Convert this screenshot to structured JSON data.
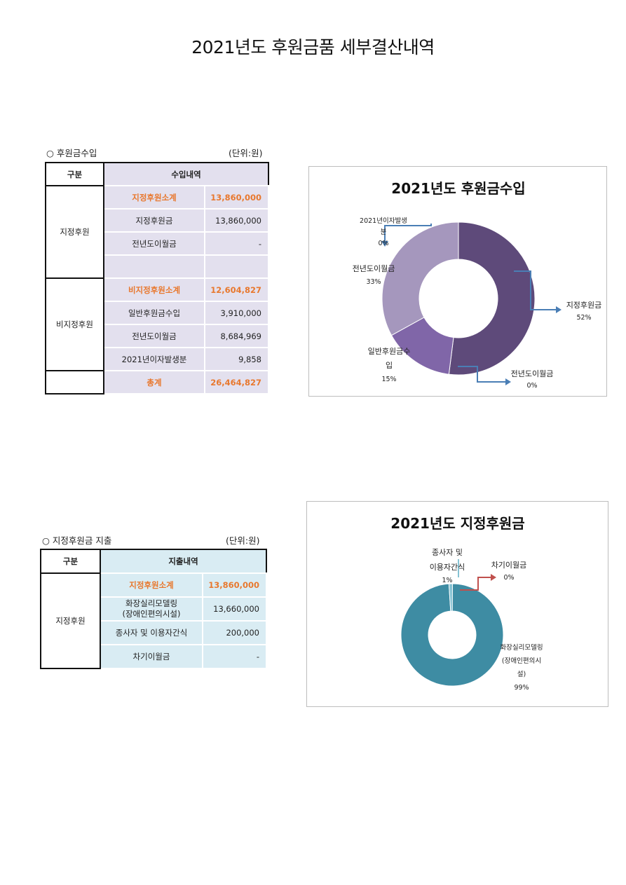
{
  "page_title": "2021년도 후원금품 세부결산내역",
  "income": {
    "section_title": "○ 후원금수입",
    "unit": "(단위:원)",
    "header": {
      "category": "구분",
      "detail": "수입내역"
    },
    "groups": [
      {
        "label": "지정후원",
        "rows": [
          {
            "item": "지정후원소계",
            "amount": "13,860,000",
            "highlight": true
          },
          {
            "item": "지정후원금",
            "amount": "13,860,000"
          },
          {
            "item": "전년도이월금",
            "amount": "-"
          },
          {
            "item": "",
            "amount": ""
          }
        ]
      },
      {
        "label": "비지정후원",
        "rows": [
          {
            "item": "비지정후원소계",
            "amount": "12,604,827",
            "highlight": true
          },
          {
            "item": "일반후원금수입",
            "amount": "3,910,000"
          },
          {
            "item": "전년도이월금",
            "amount": "8,684,969"
          },
          {
            "item": "2021년이자발생분",
            "amount": "9,858"
          }
        ]
      }
    ],
    "total": {
      "item": "총계",
      "amount": "26,464,827"
    }
  },
  "expense": {
    "section_title": "○ 지정후원금 지출",
    "unit": "(단위:원)",
    "header": {
      "category": "구분",
      "detail": "지출내역"
    },
    "group_label": "지정후원",
    "rows": [
      {
        "item": "지정후원소계",
        "amount": "13,860,000",
        "highlight": true
      },
      {
        "item": "화장실리모델링\n(장애인편의시설)",
        "amount": "13,660,000"
      },
      {
        "item": "종사자 및 이용자간식",
        "amount": "200,000"
      },
      {
        "item": "차기이월금",
        "amount": "-"
      }
    ]
  },
  "chart_data": [
    {
      "type": "pie",
      "donut": true,
      "title": "2021년도 후원금수입",
      "slices": [
        {
          "label": "지정후원금",
          "value": 52,
          "pct_label": "52%",
          "color": "#5e4a7a"
        },
        {
          "label": "전년도이월금",
          "value": 0,
          "pct_label": "0%",
          "color": "#7e67a8"
        },
        {
          "label": "일반후원금수입",
          "value": 15,
          "pct_label": "15%",
          "color": "#8066a8"
        },
        {
          "label": "전년도이월금",
          "value": 33,
          "pct_label": "33%",
          "color": "#a597bd"
        },
        {
          "label": "2021년이자발생분",
          "value": 0,
          "pct_label": "0%",
          "color": "#6f6286"
        }
      ],
      "legend": "none",
      "leader_color": "#4a7eb5"
    },
    {
      "type": "pie",
      "donut": true,
      "title": "2021년도 지정후원금",
      "slices": [
        {
          "label": "화장실리모델링(장애인편의시설)",
          "value": 99,
          "pct_label": "99%",
          "color": "#3e8ca3"
        },
        {
          "label": "종사자 및 이용자간식",
          "value": 1,
          "pct_label": "1%",
          "color": "#86c3d4"
        },
        {
          "label": "차기이월금",
          "value": 0,
          "pct_label": "0%",
          "color": "#c0504d"
        }
      ],
      "legend": "none",
      "leader_color": "#c0504d"
    }
  ],
  "chart_labels": {
    "c1": {
      "jijeong": "지정후원금",
      "jijeong_pct": "52%",
      "iwol_b": "전년도이월금",
      "iwol_b_pct": "0%",
      "ilban_1": "일반후원금수",
      "ilban_2": "입",
      "ilban_pct": "15%",
      "iwol_l": "전년도이월금",
      "iwol_l_pct": "33%",
      "ija_1": "2021년이자발생",
      "ija_2": "분",
      "ija_pct": "0%"
    },
    "c2": {
      "snack_1": "종사자 및",
      "snack_2": "이용자간식",
      "snack_pct": "1%",
      "carry": "차기이월금",
      "carry_pct": "0%",
      "remodel_1": "화장실리모델링",
      "remodel_2": "(장애인편의시",
      "remodel_3": "설)",
      "remodel_pct": "99%"
    }
  }
}
